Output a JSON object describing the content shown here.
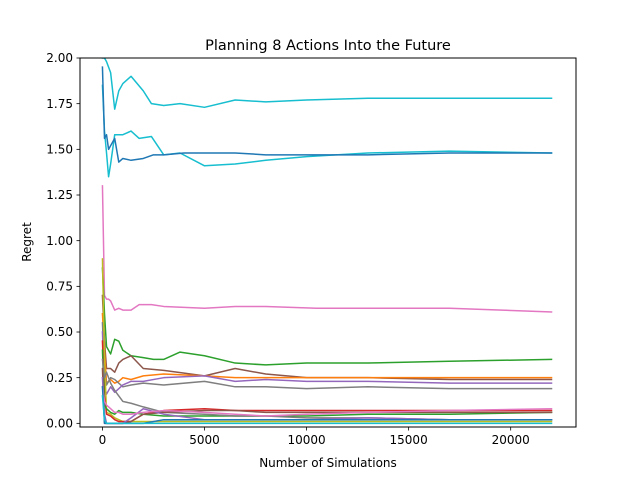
{
  "chart_data": {
    "type": "line",
    "title": "Planning 8 Actions Into the Future",
    "xlabel": "Number of Simulations",
    "ylabel": "Regret",
    "xlim": [
      -1100,
      23200
    ],
    "ylim": [
      -0.02,
      2.0
    ],
    "xticks": [
      0,
      5000,
      10000,
      15000,
      20000
    ],
    "xtick_labels": [
      "0",
      "5000",
      "10000",
      "15000",
      "20000"
    ],
    "yticks": [
      0.0,
      0.25,
      0.5,
      0.75,
      1.0,
      1.25,
      1.5,
      1.75,
      2.0
    ],
    "ytick_labels": [
      "0.00",
      "0.25",
      "0.50",
      "0.75",
      "1.00",
      "1.25",
      "1.50",
      "1.75",
      "2.00"
    ],
    "grid": false,
    "series": [
      {
        "color": "#17becf",
        "x": [
          0,
          100,
          200,
          400,
          600,
          800,
          1000,
          1400,
          2000,
          2400,
          3000,
          3800,
          5000,
          6500,
          8000,
          10000,
          13000,
          17000,
          22000
        ],
        "y": [
          2.0,
          2.0,
          1.98,
          1.92,
          1.72,
          1.82,
          1.86,
          1.9,
          1.82,
          1.75,
          1.74,
          1.75,
          1.73,
          1.77,
          1.76,
          1.77,
          1.78,
          1.78,
          1.78
        ]
      },
      {
        "color": "#17becf",
        "x": [
          0,
          100,
          200,
          300,
          400,
          600,
          800,
          1000,
          1400,
          1800,
          2400,
          3000,
          3800,
          5000,
          6500,
          8000,
          10000,
          13000,
          17000,
          22000
        ],
        "y": [
          1.85,
          1.6,
          1.48,
          1.35,
          1.42,
          1.58,
          1.58,
          1.58,
          1.6,
          1.56,
          1.57,
          1.47,
          1.48,
          1.41,
          1.42,
          1.44,
          1.46,
          1.48,
          1.49,
          1.48
        ]
      },
      {
        "color": "#1f77b4",
        "x": [
          0,
          100,
          200,
          300,
          400,
          600,
          800,
          1000,
          1400,
          2000,
          2500,
          3000,
          4000,
          5000,
          6500,
          8000,
          10000,
          13000,
          17000,
          22000
        ],
        "y": [
          1.95,
          1.56,
          1.58,
          1.5,
          1.52,
          1.56,
          1.43,
          1.45,
          1.44,
          1.45,
          1.47,
          1.47,
          1.48,
          1.48,
          1.48,
          1.47,
          1.47,
          1.47,
          1.48,
          1.48
        ]
      },
      {
        "color": "#e377c2",
        "x": [
          0,
          100,
          200,
          300,
          400,
          600,
          800,
          1000,
          1400,
          1800,
          2400,
          3000,
          5000,
          6500,
          8000,
          10500,
          13000,
          17000,
          22000
        ],
        "y": [
          1.3,
          0.7,
          0.68,
          0.68,
          0.67,
          0.62,
          0.63,
          0.62,
          0.62,
          0.65,
          0.65,
          0.64,
          0.63,
          0.64,
          0.64,
          0.63,
          0.63,
          0.63,
          0.61
        ]
      },
      {
        "color": "#2ca02c",
        "x": [
          0,
          100,
          200,
          400,
          600,
          800,
          1000,
          1400,
          2000,
          2500,
          3000,
          3800,
          5000,
          6500,
          8000,
          10000,
          13000,
          17000,
          22000
        ],
        "y": [
          0.85,
          0.6,
          0.42,
          0.38,
          0.46,
          0.45,
          0.4,
          0.37,
          0.36,
          0.35,
          0.35,
          0.39,
          0.37,
          0.33,
          0.32,
          0.33,
          0.33,
          0.34,
          0.35
        ]
      },
      {
        "color": "#8c564b",
        "x": [
          0,
          100,
          200,
          400,
          600,
          800,
          1000,
          1400,
          2000,
          3000,
          5000,
          6500,
          8000,
          10000,
          13000,
          17000,
          22000
        ],
        "y": [
          0.7,
          0.45,
          0.3,
          0.3,
          0.28,
          0.33,
          0.35,
          0.37,
          0.3,
          0.29,
          0.26,
          0.3,
          0.27,
          0.25,
          0.25,
          0.24,
          0.24
        ]
      },
      {
        "color": "#ff7f0e",
        "x": [
          0,
          100,
          200,
          400,
          600,
          800,
          1000,
          1400,
          2000,
          3000,
          5000,
          6500,
          8000,
          10000,
          13000,
          17000,
          22000
        ],
        "y": [
          0.6,
          0.4,
          0.22,
          0.24,
          0.22,
          0.23,
          0.25,
          0.24,
          0.26,
          0.27,
          0.26,
          0.25,
          0.25,
          0.25,
          0.25,
          0.25,
          0.25
        ]
      },
      {
        "color": "#7f7f7f",
        "x": [
          0,
          100,
          200,
          400,
          600,
          800,
          1000,
          1400,
          2000,
          3000,
          5000,
          6500,
          8000,
          10000,
          13000,
          17000,
          22000
        ],
        "y": [
          0.55,
          0.28,
          0.21,
          0.25,
          0.24,
          0.22,
          0.2,
          0.21,
          0.22,
          0.21,
          0.23,
          0.2,
          0.2,
          0.19,
          0.2,
          0.19,
          0.19
        ]
      },
      {
        "color": "#9467bd",
        "x": [
          0,
          100,
          200,
          400,
          600,
          800,
          1000,
          1400,
          2000,
          3000,
          5000,
          6500,
          8000,
          10000,
          13000,
          17000,
          22000
        ],
        "y": [
          0.5,
          0.2,
          0.16,
          0.2,
          0.17,
          0.19,
          0.21,
          0.23,
          0.23,
          0.25,
          0.26,
          0.23,
          0.24,
          0.23,
          0.23,
          0.22,
          0.22
        ]
      },
      {
        "color": "#bcbd22",
        "x": [
          0,
          100,
          200,
          400,
          600,
          800,
          1000,
          1400,
          2000,
          3000,
          5000,
          6500,
          8000,
          10000,
          13000,
          17000,
          22000
        ],
        "y": [
          0.9,
          0.35,
          0.06,
          0.05,
          0.03,
          0.02,
          0.01,
          0.01,
          0.01,
          0.01,
          0.01,
          0.01,
          0.01,
          0.01,
          0.01,
          0.01,
          0.01
        ]
      },
      {
        "color": "#d62728",
        "x": [
          0,
          100,
          200,
          400,
          600,
          800,
          1000,
          1400,
          2000,
          3000,
          5000,
          6500,
          8000,
          10000,
          13000,
          17000,
          22000
        ],
        "y": [
          0.45,
          0.15,
          0.05,
          0.04,
          0.02,
          0.01,
          0.01,
          0.01,
          0.05,
          0.07,
          0.08,
          0.07,
          0.07,
          0.07,
          0.07,
          0.07,
          0.07
        ]
      },
      {
        "color": "#2ca02c",
        "x": [
          0,
          100,
          200,
          400,
          600,
          800,
          1000,
          1400,
          2000,
          3000,
          5000,
          6500,
          8000,
          10000,
          13000,
          17000,
          22000
        ],
        "y": [
          0.4,
          0.1,
          0.08,
          0.06,
          0.05,
          0.07,
          0.06,
          0.06,
          0.05,
          0.04,
          0.04,
          0.04,
          0.04,
          0.04,
          0.05,
          0.05,
          0.06
        ]
      },
      {
        "color": "#7f7f7f",
        "x": [
          0,
          100,
          200,
          400,
          600,
          800,
          1000,
          1400,
          2000,
          3000,
          5000,
          6500,
          8000,
          10000,
          13000,
          17000,
          22000
        ],
        "y": [
          0.35,
          0.25,
          0.28,
          0.22,
          0.18,
          0.15,
          0.12,
          0.11,
          0.09,
          0.06,
          0.05,
          0.04,
          0.04,
          0.03,
          0.03,
          0.02,
          0.02
        ]
      },
      {
        "color": "#8c564b",
        "x": [
          0,
          100,
          200,
          400,
          600,
          800,
          1000,
          1400,
          2000,
          3000,
          5000,
          6500,
          8000,
          10000,
          13000,
          17000,
          22000
        ],
        "y": [
          0.3,
          0.0,
          0.0,
          0.0,
          0.0,
          0.0,
          0.0,
          0.01,
          0.05,
          0.06,
          0.07,
          0.07,
          0.06,
          0.06,
          0.06,
          0.06,
          0.06
        ]
      },
      {
        "color": "#9467bd",
        "x": [
          0,
          100,
          200,
          400,
          600,
          800,
          1000,
          1400,
          2000,
          3000,
          5000,
          6500,
          8000,
          10000,
          13000,
          17000,
          22000
        ],
        "y": [
          0.25,
          0.05,
          0.0,
          0.0,
          0.0,
          0.0,
          0.0,
          0.03,
          0.08,
          0.05,
          0.02,
          0.02,
          0.02,
          0.02,
          0.03,
          0.02,
          0.02
        ]
      },
      {
        "color": "#e377c2",
        "x": [
          0,
          100,
          200,
          400,
          600,
          800,
          1000,
          1400,
          2000,
          3000,
          5000,
          6500,
          8000,
          10000,
          13000,
          17000,
          22000
        ],
        "y": [
          0.2,
          0.12,
          0.1,
          0.08,
          0.06,
          0.06,
          0.05,
          0.05,
          0.06,
          0.07,
          0.06,
          0.05,
          0.04,
          0.05,
          0.06,
          0.07,
          0.08
        ]
      },
      {
        "color": "#1f77b4",
        "x": [
          0,
          100,
          200,
          400,
          600,
          800,
          1000,
          1400,
          2000,
          3000,
          5000,
          6500,
          8000,
          10000,
          13000,
          17000,
          22000
        ],
        "y": [
          0.2,
          0.0,
          0.0,
          0.0,
          0.0,
          0.0,
          0.0,
          0.0,
          0.0,
          0.02,
          0.02,
          0.02,
          0.02,
          0.02,
          0.02,
          0.02,
          0.02
        ]
      },
      {
        "color": "#17becf",
        "x": [
          0,
          100,
          200,
          400,
          600,
          800,
          1000,
          1400,
          2000,
          3000,
          5000,
          6500,
          8000,
          10000,
          13000,
          17000,
          22000
        ],
        "y": [
          0.15,
          0.02,
          0.0,
          0.0,
          0.0,
          0.0,
          0.0,
          0.0,
          0.0,
          0.0,
          0.0,
          0.0,
          0.0,
          0.0,
          0.0,
          0.0,
          0.0
        ]
      }
    ]
  }
}
